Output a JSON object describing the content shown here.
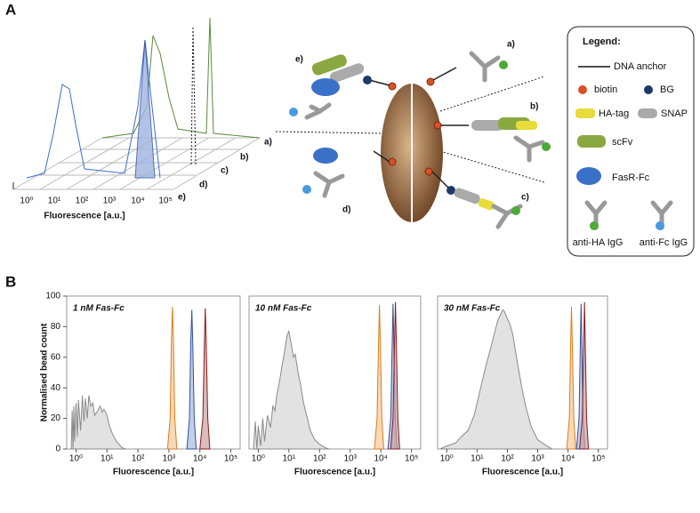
{
  "panel_a": {
    "label": "A",
    "histogram_3d": {
      "xlabel": "Fluorescence [a.u.]",
      "xtick_labels": [
        "10⁰",
        "10¹",
        "10²",
        "10³",
        "10⁴",
        "10⁵"
      ],
      "traces": [
        "a)",
        "b)",
        "c)",
        "d)",
        "e)"
      ]
    },
    "diagram": {
      "labels": [
        "a)",
        "b)",
        "c)",
        "d)",
        "e)"
      ]
    },
    "legend": {
      "title": "Legend:",
      "items": [
        "DNA anchor",
        "biotin",
        "BG",
        "HA-tag",
        "SNAP",
        "scFv",
        "FasR-Fc",
        "anti-HA IgG",
        "anti-Fc IgG"
      ]
    }
  },
  "panel_b": {
    "label": "B"
  },
  "chart_data": [
    {
      "type": "area",
      "title": "1 nM Fas-Fc",
      "xlabel": "Fluorescence [a.u.]",
      "ylabel": "Normalised bead count",
      "xlog": true,
      "xlim": [
        0.5,
        200000
      ],
      "xticks": [
        {
          "value": 1,
          "label": "10⁰"
        },
        {
          "value": 10,
          "label": "10¹"
        },
        {
          "value": 100,
          "label": "10²"
        },
        {
          "value": 1000,
          "label": "10³"
        },
        {
          "value": 10000,
          "label": "10⁴"
        },
        {
          "value": 100000,
          "label": "10⁵"
        }
      ],
      "ylim": [
        0,
        100
      ],
      "yticks": [
        0,
        20,
        40,
        60,
        80,
        100
      ],
      "series": [
        {
          "color": "#8a8a8a",
          "fill": "#d6d6d6",
          "x": [
            0.7,
            0.75,
            0.8,
            0.85,
            0.9,
            1,
            1.1,
            1.2,
            1.4,
            1.6,
            1.8,
            2,
            2.3,
            2.6,
            3,
            3.5,
            4,
            5,
            6,
            7,
            8,
            10,
            12,
            15,
            20,
            25,
            30,
            40
          ],
          "values": [
            0,
            25,
            0,
            28,
            5,
            30,
            8,
            32,
            12,
            35,
            18,
            33,
            20,
            35,
            28,
            30,
            22,
            25,
            28,
            24,
            26,
            22,
            15,
            10,
            5,
            3,
            1,
            0
          ]
        },
        {
          "color": "#e07b1a",
          "fill": "#f5c99a",
          "x": [
            900,
            1100,
            1200,
            1300,
            1400,
            1550,
            1800
          ],
          "values": [
            0,
            20,
            70,
            93,
            70,
            20,
            0
          ]
        },
        {
          "color": "#2f4f9e",
          "fill": "#aabbe0",
          "x": [
            3800,
            4600,
            5100,
            5500,
            5900,
            6600,
            7600
          ],
          "values": [
            0,
            20,
            70,
            91,
            70,
            20,
            0
          ]
        },
        {
          "color": "#8b1a1a",
          "fill": "#c9a0a0",
          "x": [
            10000,
            12500,
            14000,
            15000,
            16000,
            18000,
            21000
          ],
          "values": [
            0,
            20,
            70,
            92,
            70,
            20,
            0
          ]
        }
      ]
    },
    {
      "type": "area",
      "title": "10 nM Fas-Fc",
      "xlabel": "Fluorescence [a.u.]",
      "xlog": true,
      "xlim": [
        0.5,
        200000
      ],
      "xticks": [
        {
          "value": 1,
          "label": "10⁰"
        },
        {
          "value": 10,
          "label": "10¹"
        },
        {
          "value": 100,
          "label": "10²"
        },
        {
          "value": 1000,
          "label": "10³"
        },
        {
          "value": 10000,
          "label": "10⁴"
        },
        {
          "value": 100000,
          "label": "10⁵"
        }
      ],
      "ylim": [
        0,
        100
      ],
      "series": [
        {
          "color": "#8a8a8a",
          "fill": "#d6d6d6",
          "x": [
            0.7,
            0.8,
            0.9,
            1,
            1.2,
            1.4,
            1.6,
            2,
            2.5,
            3,
            3.5,
            4,
            5,
            6,
            7,
            8,
            9,
            10,
            12,
            14,
            16,
            20,
            25,
            30,
            40,
            50,
            70,
            100,
            150,
            200
          ],
          "values": [
            0,
            18,
            0,
            15,
            2,
            20,
            5,
            22,
            14,
            28,
            25,
            35,
            45,
            55,
            62,
            70,
            75,
            77,
            68,
            60,
            62,
            50,
            40,
            30,
            20,
            12,
            6,
            3,
            1,
            0
          ]
        },
        {
          "color": "#e07b1a",
          "fill": "#f5c99a",
          "x": [
            6200,
            7500,
            8400,
            9000,
            9600,
            10800,
            12500
          ],
          "values": [
            0,
            20,
            70,
            94,
            70,
            20,
            0
          ]
        },
        {
          "color": "#2f4f9e",
          "fill": "#aabbe0",
          "x": [
            17000,
            21000,
            23500,
            25000,
            26500,
            29500,
            34000
          ],
          "values": [
            0,
            20,
            70,
            95,
            70,
            20,
            0
          ]
        },
        {
          "color": "#8b1a1a",
          "fill": "#c9a0a0",
          "x": [
            21000,
            25000,
            28000,
            30000,
            32000,
            36000,
            41000
          ],
          "values": [
            0,
            20,
            70,
            96,
            70,
            20,
            0
          ]
        }
      ]
    },
    {
      "type": "area",
      "title": "30 nM Fas-Fc",
      "xlabel": "Fluorescence [a.u.]",
      "xlog": true,
      "xlim": [
        0.5,
        200000
      ],
      "xticks": [
        {
          "value": 1,
          "label": "10⁰"
        },
        {
          "value": 10,
          "label": "10¹"
        },
        {
          "value": 100,
          "label": "10²"
        },
        {
          "value": 1000,
          "label": "10³"
        },
        {
          "value": 10000,
          "label": "10⁴"
        },
        {
          "value": 100000,
          "label": "10⁵"
        }
      ],
      "ylim": [
        0,
        100
      ],
      "series": [
        {
          "color": "#8a8a8a",
          "fill": "#d6d6d6",
          "x": [
            0.6,
            1,
            2,
            3,
            5,
            8,
            10,
            15,
            20,
            30,
            40,
            50,
            60,
            70,
            80,
            100,
            120,
            150,
            200,
            300,
            400,
            600,
            1000,
            2000,
            3000
          ],
          "values": [
            0,
            2,
            4,
            8,
            12,
            22,
            30,
            45,
            55,
            68,
            78,
            85,
            88,
            91,
            90,
            85,
            82,
            75,
            60,
            40,
            28,
            15,
            6,
            2,
            0
          ]
        },
        {
          "color": "#e07b1a",
          "fill": "#f5c99a",
          "x": [
            9000,
            11000,
            12200,
            13000,
            13800,
            15500,
            18000
          ],
          "values": [
            0,
            20,
            70,
            93,
            70,
            20,
            0
          ]
        },
        {
          "color": "#2f4f9e",
          "fill": "#aabbe0",
          "x": [
            19000,
            23000,
            25500,
            27000,
            28500,
            31500,
            36000
          ],
          "values": [
            0,
            20,
            70,
            95,
            70,
            20,
            0
          ]
        },
        {
          "color": "#8b1a1a",
          "fill": "#c9a0a0",
          "x": [
            24000,
            29500,
            33000,
            35000,
            37000,
            41000,
            47000
          ],
          "values": [
            0,
            20,
            70,
            96,
            70,
            20,
            0
          ]
        }
      ]
    }
  ]
}
